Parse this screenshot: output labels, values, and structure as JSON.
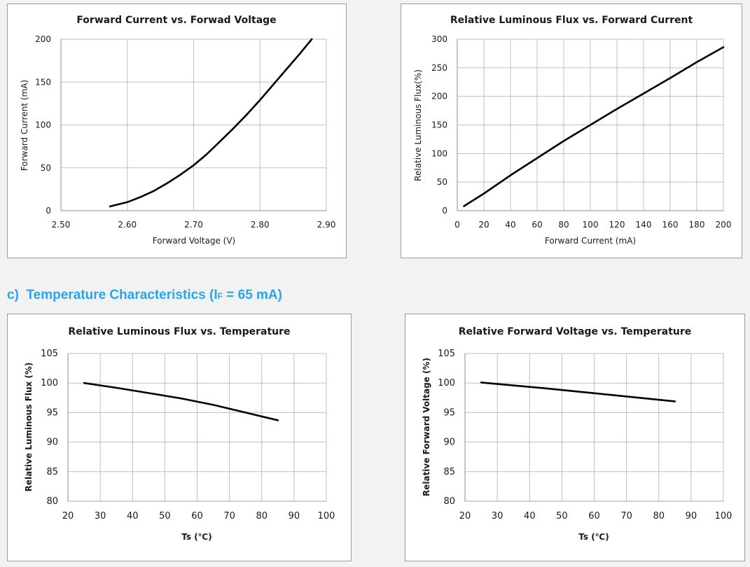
{
  "section": {
    "prefix": "c)",
    "title": "Temperature Characteristics",
    "condition_open": "(I",
    "condition_sub": "F",
    "condition_close": " = 65 mA)"
  },
  "colors": {
    "heading": "#2aa3f0",
    "line": "#000000",
    "grid": "#bfbfbf"
  },
  "chart_data": [
    {
      "type": "line",
      "title": "Forward Current vs. Forwad Voltage",
      "xlabel": "Forward Voltage (V)",
      "ylabel": "Forward Current (mA)",
      "xlim": [
        2.5,
        2.9
      ],
      "ylim": [
        0,
        200
      ],
      "xticks": [
        "2.50",
        "2.60",
        "2.70",
        "2.80",
        "2.90"
      ],
      "yticks": [
        "0",
        "50",
        "100",
        "150",
        "200"
      ],
      "grid": true,
      "series": [
        {
          "x": [
            2.574,
            2.6,
            2.62,
            2.64,
            2.66,
            2.68,
            2.7,
            2.72,
            2.74,
            2.76,
            2.78,
            2.8,
            2.82,
            2.84,
            2.86,
            2.878
          ],
          "y": [
            5,
            10,
            16,
            23,
            32,
            42,
            53,
            66,
            81,
            96,
            112,
            129,
            147,
            165,
            183,
            200
          ]
        }
      ]
    },
    {
      "type": "line",
      "title": "Relative Luminous Flux vs. Forward Current",
      "xlabel": "Forward Current (mA)",
      "ylabel": "Relative Luminous Flux(%)",
      "xlim": [
        0,
        200
      ],
      "ylim": [
        0,
        300
      ],
      "xticks": [
        "0",
        "20",
        "40",
        "60",
        "80",
        "100",
        "120",
        "140",
        "160",
        "180",
        "200"
      ],
      "yticks": [
        "0",
        "50",
        "100",
        "150",
        "200",
        "250",
        "300"
      ],
      "grid": true,
      "series": [
        {
          "x": [
            5,
            20,
            40,
            60,
            80,
            100,
            120,
            140,
            160,
            180,
            200
          ],
          "y": [
            8,
            30,
            62,
            92,
            122,
            150,
            178,
            205,
            232,
            260,
            286
          ]
        }
      ]
    },
    {
      "type": "line",
      "title": "Relative Luminous Flux vs. Temperature",
      "xlabel": "Ts (℃)",
      "ylabel": "Relative Luminous Flux (%)",
      "xlim": [
        20,
        100
      ],
      "ylim": [
        80,
        105
      ],
      "xticks": [
        "20",
        "30",
        "40",
        "50",
        "60",
        "70",
        "80",
        "90",
        "100"
      ],
      "yticks": [
        "80",
        "85",
        "90",
        "95",
        "100",
        "105"
      ],
      "grid": true,
      "series": [
        {
          "x": [
            25,
            35,
            45,
            55,
            65,
            75,
            85
          ],
          "y": [
            100,
            99.2,
            98.3,
            97.4,
            96.3,
            95.0,
            93.7
          ]
        }
      ]
    },
    {
      "type": "line",
      "title": "Relative Forward Voltage vs. Temperature",
      "xlabel": "Ts (℃)",
      "ylabel": "Relative Forward Voltage (%)",
      "xlim": [
        20,
        100
      ],
      "ylim": [
        80,
        105
      ],
      "xticks": [
        "20",
        "30",
        "40",
        "50",
        "60",
        "70",
        "80",
        "90",
        "100"
      ],
      "yticks": [
        "80",
        "85",
        "90",
        "95",
        "100",
        "105"
      ],
      "grid": true,
      "series": [
        {
          "x": [
            25,
            45,
            65,
            85
          ],
          "y": [
            100.1,
            99.1,
            98.0,
            96.9
          ]
        }
      ]
    }
  ]
}
